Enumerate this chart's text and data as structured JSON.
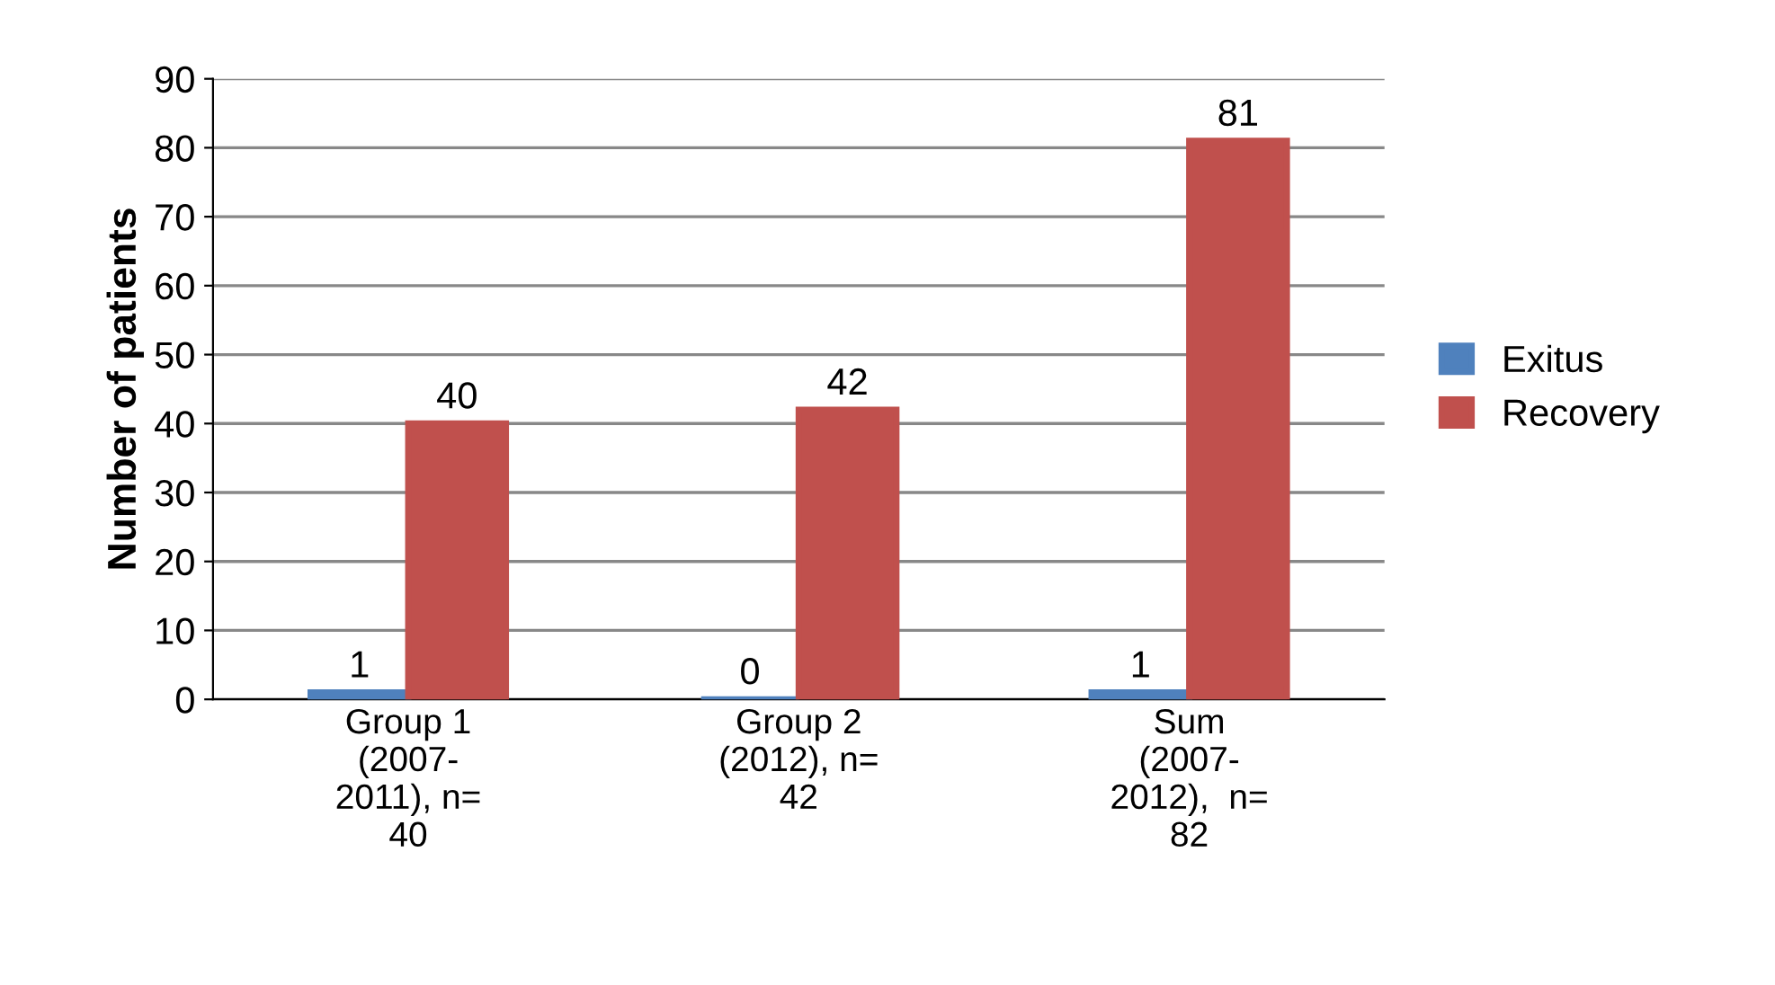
{
  "chart_data": {
    "type": "bar",
    "ylabel": "Number of patients",
    "categories": [
      "Group 1\n(2007-\n2011), n=\n40",
      "Group 2\n(2012), n=\n42",
      "Sum\n(2007-\n2012),  n=\n82"
    ],
    "series": [
      {
        "name": "Exitus",
        "color": "#4f81bd",
        "values": [
          1,
          0,
          1
        ]
      },
      {
        "name": "Recovery",
        "color": "#c0504d",
        "values": [
          40,
          42,
          81
        ]
      }
    ],
    "ylim": [
      0,
      90
    ],
    "yticks": [
      0,
      10,
      20,
      30,
      40,
      50,
      60,
      70,
      80,
      90
    ],
    "grid": "y",
    "legend": "right",
    "data_labels": true
  }
}
